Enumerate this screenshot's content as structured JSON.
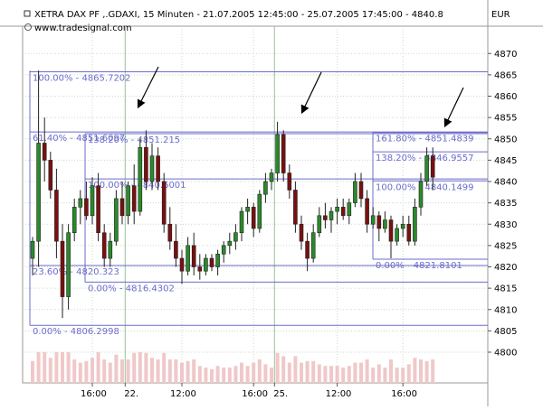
{
  "header": {
    "title": "XETRA DAX PF ,.GDAXI, 15 Minuten - 21.07.2005 12:45:00 - 25.07.2005 17:45:00 - 4840.8",
    "source": "www.tradesignal.com",
    "currency": "EUR"
  },
  "colors": {
    "up": "#2a8a2a",
    "down": "#7a1010",
    "fib_line": "#6b6bcc",
    "fib_text": "#6b6bcc",
    "volume": "#f0c8c8",
    "grid": "#c8dcc8"
  },
  "chart_data": {
    "type": "candlestick",
    "x_tick_labels": [
      "16:00",
      "22.",
      "12:00",
      "16:00",
      "25.",
      "12:00",
      "16:00"
    ],
    "y_ticks": [
      4800,
      4805,
      4810,
      4815,
      4820,
      4825,
      4830,
      4835,
      4840,
      4845,
      4850,
      4855,
      4860,
      4865,
      4870
    ],
    "ylim": [
      4796,
      4872
    ],
    "fib_levels": [
      {
        "label": "100.00% - 4865.7202",
        "value": 4865.7202
      },
      {
        "label": "61.40% - 4851.6097",
        "value": 4851.6097
      },
      {
        "label": "23.60% - 4820.323",
        "value": 4820.323
      },
      {
        "label": "0.00% - 4806.2998",
        "value": 4806.2998
      },
      {
        "label": "138.20% - 4851.215",
        "value": 4851.215
      },
      {
        "label": "100.00% - 4840.6001",
        "value": 4840.6001
      },
      {
        "label": "0.00% - 4816.4302",
        "value": 4816.4302
      },
      {
        "label": "161.80% - 4851.4839",
        "value": 4851.4839
      },
      {
        "label": "138.20% - 4846.9557",
        "value": 4846.9557
      },
      {
        "label": "100.00% - 4840.1499",
        "value": 4840.1499
      },
      {
        "label": "0.00% - 4821.8101",
        "value": 4821.8101
      }
    ],
    "candles": [
      [
        4822,
        4827,
        4818,
        4826
      ],
      [
        4826,
        4866,
        4820,
        4849
      ],
      [
        4849,
        4855,
        4840,
        4845
      ],
      [
        4845,
        4847,
        4836,
        4838
      ],
      [
        4838,
        4843,
        4822,
        4826
      ],
      [
        4826,
        4830,
        4808,
        4813
      ],
      [
        4813,
        4830,
        4810,
        4828
      ],
      [
        4828,
        4836,
        4826,
        4834
      ],
      [
        4834,
        4838,
        4830,
        4836
      ],
      [
        4836,
        4840,
        4831,
        4832
      ],
      [
        4832,
        4841,
        4830,
        4839
      ],
      [
        4839,
        4842,
        4826,
        4828
      ],
      [
        4828,
        4830,
        4820,
        4822
      ],
      [
        4822,
        4828,
        4820,
        4826
      ],
      [
        4826,
        4838,
        4825,
        4836
      ],
      [
        4836,
        4840,
        4830,
        4832
      ],
      [
        4832,
        4840,
        4830,
        4839
      ],
      [
        4839,
        4844,
        4830,
        4833
      ],
      [
        4833,
        4850,
        4832,
        4848
      ],
      [
        4848,
        4852,
        4838,
        4840
      ],
      [
        4840,
        4849,
        4838,
        4846
      ],
      [
        4846,
        4848,
        4838,
        4840
      ],
      [
        4840,
        4842,
        4828,
        4830
      ],
      [
        4830,
        4834,
        4824,
        4826
      ],
      [
        4826,
        4830,
        4820,
        4822
      ],
      [
        4822,
        4824,
        4816,
        4819
      ],
      [
        4819,
        4827,
        4818,
        4825
      ],
      [
        4825,
        4828,
        4818,
        4820
      ],
      [
        4820,
        4823,
        4817,
        4819
      ],
      [
        4819,
        4823,
        4818,
        4822
      ],
      [
        4822,
        4823,
        4819,
        4820
      ],
      [
        4820,
        4824,
        4818,
        4823
      ],
      [
        4823,
        4826,
        4821,
        4825
      ],
      [
        4825,
        4828,
        4823,
        4826
      ],
      [
        4826,
        4830,
        4824,
        4828
      ],
      [
        4828,
        4834,
        4826,
        4833
      ],
      [
        4833,
        4836,
        4830,
        4834
      ],
      [
        4834,
        4835,
        4827,
        4829
      ],
      [
        4829,
        4838,
        4828,
        4837
      ],
      [
        4837,
        4842,
        4835,
        4840
      ],
      [
        4840,
        4843,
        4838,
        4842
      ],
      [
        4842,
        4854,
        4840,
        4851
      ],
      [
        4851,
        4852,
        4840,
        4842
      ],
      [
        4842,
        4844,
        4836,
        4838
      ],
      [
        4838,
        4840,
        4828,
        4830
      ],
      [
        4830,
        4832,
        4824,
        4826
      ],
      [
        4826,
        4828,
        4819,
        4822
      ],
      [
        4822,
        4830,
        4821,
        4828
      ],
      [
        4828,
        4834,
        4827,
        4832
      ],
      [
        4832,
        4835,
        4829,
        4831
      ],
      [
        4831,
        4834,
        4828,
        4833
      ],
      [
        4833,
        4836,
        4830,
        4834
      ],
      [
        4834,
        4836,
        4831,
        4832
      ],
      [
        4832,
        4836,
        4830,
        4835
      ],
      [
        4835,
        4842,
        4834,
        4840
      ],
      [
        4840,
        4842,
        4834,
        4836
      ],
      [
        4836,
        4838,
        4828,
        4830
      ],
      [
        4830,
        4834,
        4829,
        4832
      ],
      [
        4832,
        4833,
        4826,
        4829
      ],
      [
        4829,
        4833,
        4828,
        4831
      ],
      [
        4831,
        4832,
        4822,
        4826
      ],
      [
        4826,
        4830,
        4825,
        4829
      ],
      [
        4829,
        4832,
        4827,
        4830
      ],
      [
        4830,
        4832,
        4825,
        4826
      ],
      [
        4826,
        4836,
        4825,
        4834
      ],
      [
        4834,
        4842,
        4832,
        4840
      ],
      [
        4840,
        4848,
        4839,
        4846
      ],
      [
        4846,
        4848,
        4838,
        4841
      ]
    ],
    "arrows": [
      {
        "from": [
          4866.5,
          47
        ],
        "to": [
          4851.5,
          37
        ]
      },
      {
        "from": [
          4866.5,
          84
        ],
        "to": [
          4853.5,
          74
        ]
      },
      {
        "from": [
          4861,
          126
        ],
        "to": [
          4851.5,
          120
        ]
      }
    ]
  }
}
